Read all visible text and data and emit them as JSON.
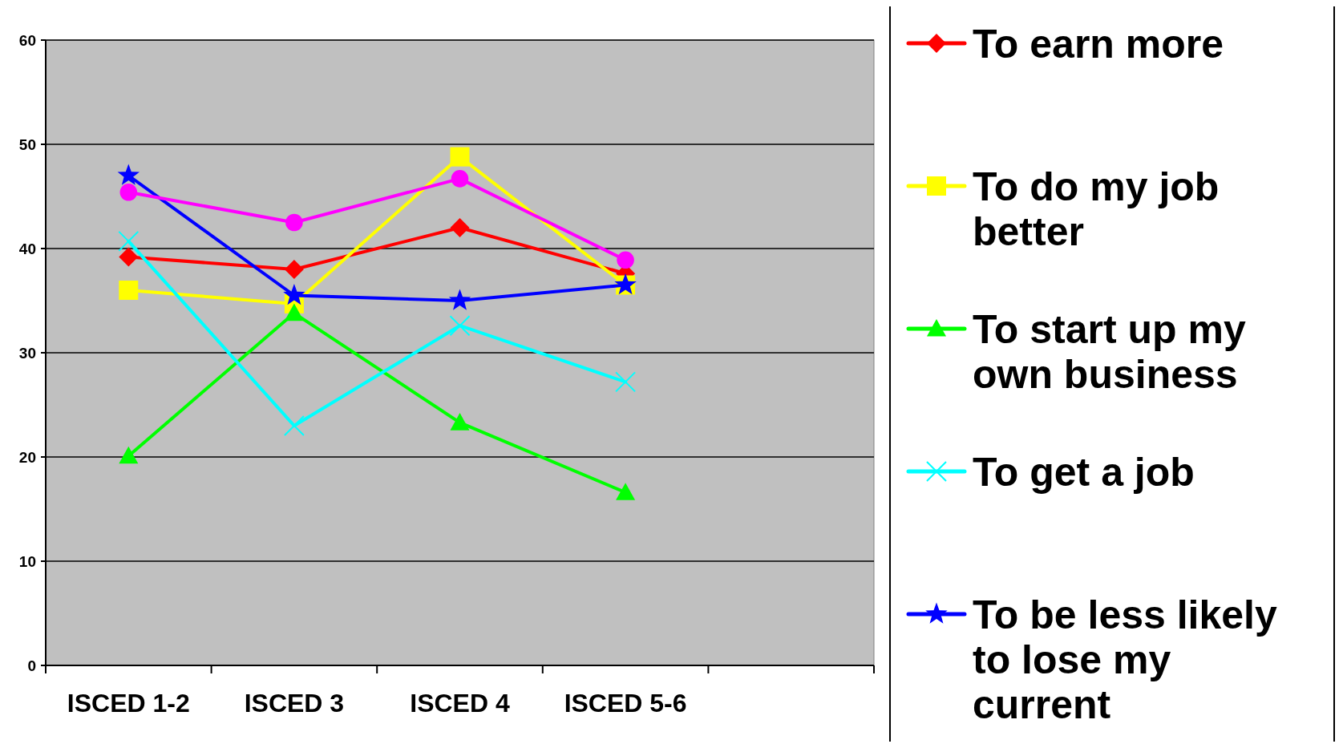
{
  "chart_data": {
    "type": "line",
    "categories": [
      "ISCED 1-2",
      "ISCED 3",
      "ISCED 4",
      "ISCED 5-6",
      null
    ],
    "ylim": [
      0,
      60
    ],
    "yticks": [
      0,
      10,
      20,
      30,
      40,
      50,
      60
    ],
    "grid": "y",
    "legend": "right",
    "series": [
      {
        "name": "To earn more",
        "color": "#ff0000",
        "marker": "diamond",
        "values": [
          39.2,
          38,
          42,
          37.6,
          null
        ]
      },
      {
        "name": "To do my job better",
        "color": "#ffff00",
        "marker": "square",
        "values": [
          36,
          34.7,
          48.8,
          36.5,
          null
        ]
      },
      {
        "name": "To start up my own business",
        "color": "#00ff00",
        "marker": "triangle",
        "values": [
          20.1,
          33.8,
          23.3,
          16.6,
          null
        ]
      },
      {
        "name": "To get a job",
        "color": "#00ffff",
        "marker": "cross",
        "values": [
          40.7,
          23,
          32.6,
          27.2,
          null
        ]
      },
      {
        "name": "To be less likely to lose my current",
        "color": "#0000ff",
        "marker": "star",
        "values": [
          47,
          35.5,
          35,
          36.5,
          null
        ]
      },
      {
        "color": "#ff00ff",
        "marker": "circle",
        "values": [
          45.4,
          42.5,
          46.7,
          38.9,
          null
        ]
      }
    ]
  }
}
